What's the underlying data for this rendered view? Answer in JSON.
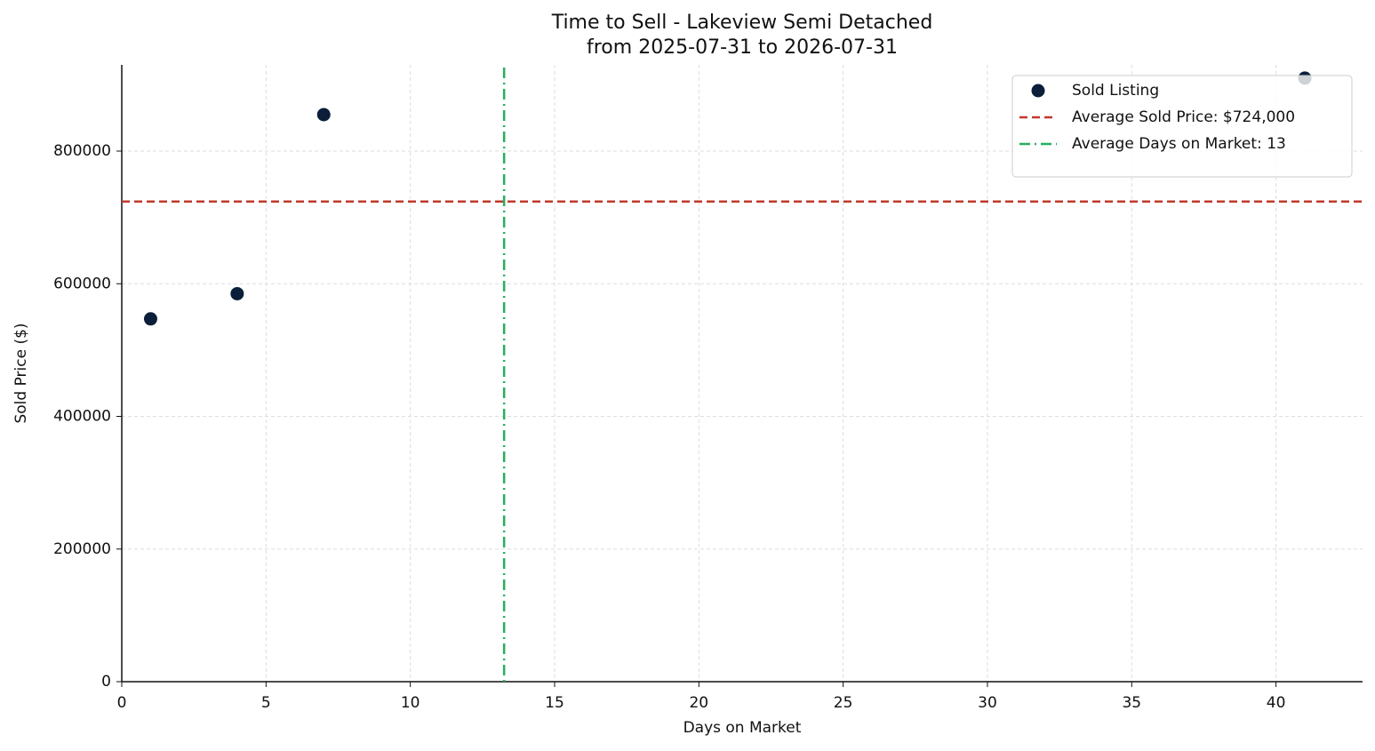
{
  "chart_data": {
    "type": "scatter",
    "title": "Time to Sell - Lakeview Semi Detached",
    "subtitle": "from 2025-07-31 to 2026-07-31",
    "x_label": "Days on Market",
    "y_label": "Sold Price ($)",
    "series": [
      {
        "name": "Sold Listing",
        "color": "#0b1f3a",
        "x": [
          1,
          4,
          7,
          41
        ],
        "values": [
          547000,
          585000,
          855000,
          910000
        ]
      }
    ],
    "reference_lines": [
      {
        "orientation": "horizontal",
        "value": 724000,
        "label": "Average Sold Price: $724,000",
        "color": "#c0392b",
        "dash": "dashed"
      },
      {
        "orientation": "vertical",
        "value": 13.25,
        "label": "Average Days on Market: 13",
        "color": "#27ae60",
        "dash": "dashdot"
      }
    ],
    "xlim": [
      0,
      43
    ],
    "ylim": [
      0,
      930000
    ],
    "xticks": [
      0,
      5,
      10,
      15,
      20,
      25,
      30,
      35,
      40
    ],
    "yticks": [
      0,
      200000,
      400000,
      600000,
      800000
    ],
    "grid": true,
    "legend": "upper right"
  }
}
